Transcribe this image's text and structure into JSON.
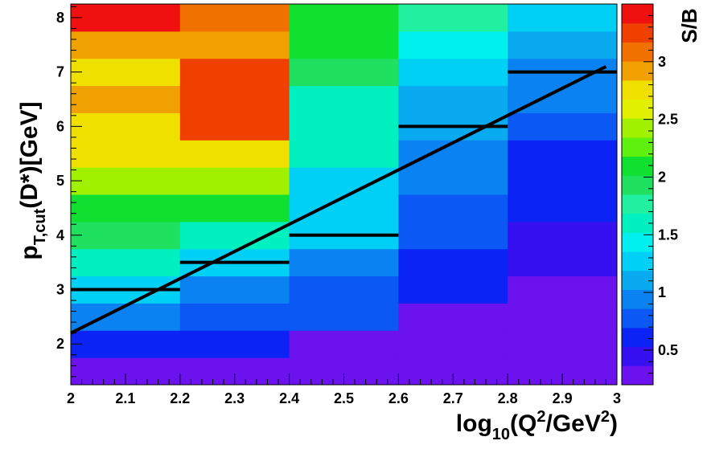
{
  "chart_data": {
    "type": "heatmap",
    "xlabel": {
      "base": "log",
      "sub": "10",
      "paren_open": "(Q",
      "sup1": "2",
      "mid": "/GeV",
      "sup2": "2",
      "paren_close": ")"
    },
    "ylabel": {
      "base": "p",
      "sub": "T,cut",
      "rest": "(D*)[GeV]"
    },
    "zlabel": "S/B",
    "xlim": [
      2.0,
      3.0
    ],
    "ylim": [
      1.25,
      8.25
    ],
    "x_ticks": [
      "2",
      "2.1",
      "2.2",
      "2.3",
      "2.4",
      "2.5",
      "2.6",
      "2.7",
      "2.8",
      "2.9",
      "3"
    ],
    "y_ticks": [
      "2",
      "3",
      "4",
      "5",
      "6",
      "7",
      "8"
    ],
    "z_ticks": [
      "0.5",
      "1",
      "1.5",
      "2",
      "2.5",
      "3"
    ],
    "zlim": [
      0.2,
      3.5
    ],
    "x_edges": [
      2.0,
      2.2,
      2.4,
      2.6,
      2.8,
      3.0
    ],
    "y_edges": [
      1.25,
      1.75,
      2.25,
      2.75,
      3.25,
      3.75,
      4.25,
      4.75,
      5.25,
      5.75,
      6.25,
      6.75,
      7.25,
      7.75,
      8.25
    ],
    "z_values": [
      [
        0.35,
        0.35,
        0.3,
        0.3,
        0.3
      ],
      [
        0.65,
        0.65,
        0.35,
        0.35,
        0.3
      ],
      [
        0.95,
        0.8,
        0.7,
        0.35,
        0.3
      ],
      [
        1.25,
        0.95,
        0.8,
        0.65,
        0.35
      ],
      [
        1.55,
        1.3,
        0.95,
        0.65,
        0.45
      ],
      [
        1.85,
        1.55,
        1.2,
        0.8,
        0.45
      ],
      [
        2.15,
        2.15,
        1.3,
        0.8,
        0.65
      ],
      [
        2.45,
        2.35,
        1.3,
        0.95,
        0.65
      ],
      [
        2.75,
        2.75,
        1.55,
        0.95,
        0.65
      ],
      [
        2.75,
        3.25,
        1.55,
        1.05,
        0.8
      ],
      [
        2.95,
        3.25,
        1.55,
        1.05,
        0.95
      ],
      [
        2.75,
        3.25,
        1.85,
        1.25,
        0.95
      ],
      [
        2.95,
        2.95,
        2.05,
        1.45,
        1.05
      ],
      [
        3.35,
        3.05,
        2.05,
        1.75,
        1.25
      ]
    ],
    "palette": [
      "#6b12ee",
      "#3610f0",
      "#0b24f5",
      "#0b58f4",
      "#0a82f2",
      "#0aaaf0",
      "#00d0f6",
      "#00f0f0",
      "#00f0c0",
      "#20f0a0",
      "#20e060",
      "#10e030",
      "#60f010",
      "#a0f000",
      "#e0f000",
      "#f0e000",
      "#f0a000",
      "#f07000",
      "#f04000",
      "#f01010"
    ],
    "series": [
      {
        "type": "step",
        "color": "#000000",
        "segments": [
          [
            2.0,
            2.2,
            3.0
          ],
          [
            2.2,
            2.4,
            3.5
          ],
          [
            2.4,
            2.6,
            4.0
          ],
          [
            2.6,
            2.8,
            6.0
          ],
          [
            2.8,
            3.0,
            7.0
          ]
        ]
      },
      {
        "type": "line",
        "color": "#000000",
        "points": [
          [
            2.0,
            2.2
          ],
          [
            2.98,
            7.1
          ]
        ]
      }
    ]
  }
}
